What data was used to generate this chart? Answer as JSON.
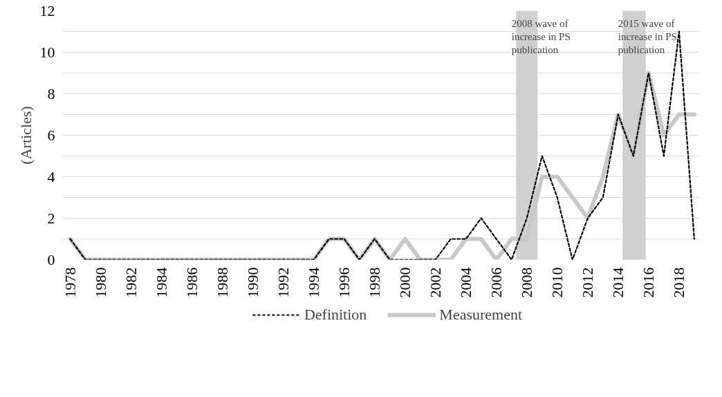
{
  "chart_data": {
    "type": "line",
    "ylabel": "(Articles)",
    "x": [
      1978,
      1979,
      1980,
      1981,
      1982,
      1983,
      1984,
      1985,
      1986,
      1987,
      1988,
      1989,
      1990,
      1991,
      1992,
      1993,
      1994,
      1995,
      1996,
      1997,
      1998,
      1999,
      2000,
      2001,
      2002,
      2003,
      2004,
      2005,
      2006,
      2007,
      2008,
      2009,
      2010,
      2011,
      2012,
      2013,
      2014,
      2015,
      2016,
      2017,
      2018,
      2019
    ],
    "series": [
      {
        "name": "Definition",
        "color": "#000000",
        "line_style": "dashed",
        "values": [
          1,
          0,
          0,
          0,
          0,
          0,
          0,
          0,
          0,
          0,
          0,
          0,
          0,
          0,
          0,
          0,
          0,
          1,
          1,
          0,
          1,
          0,
          0,
          0,
          0,
          1,
          1,
          2,
          1,
          0,
          2,
          5,
          3,
          0,
          2,
          3,
          7,
          5,
          9,
          5,
          11,
          1
        ]
      },
      {
        "name": "Measurement",
        "color": "#c8c8c8",
        "line_style": "solid",
        "values": [
          1,
          0,
          0,
          0,
          0,
          0,
          0,
          0,
          0,
          0,
          0,
          0,
          0,
          0,
          0,
          0,
          0,
          1,
          1,
          0,
          1,
          0,
          1,
          0,
          0,
          0,
          1,
          1,
          0,
          1,
          1,
          4,
          4,
          3,
          2,
          4,
          7,
          5,
          9,
          6,
          7,
          7
        ]
      }
    ],
    "xlim": [
      1977.5,
      2019.3
    ],
    "xticks": [
      1978,
      1980,
      1982,
      1984,
      1986,
      1988,
      1990,
      1992,
      1994,
      1996,
      1998,
      2000,
      2002,
      2004,
      2006,
      2008,
      2010,
      2012,
      2014,
      2016,
      2018
    ],
    "ylim": [
      0,
      12
    ],
    "yticks": [
      0,
      {
        "value": 1,
        "label": null
      },
      2,
      {
        "value": 3,
        "label": null
      },
      4,
      {
        "value": 5,
        "label": null
      },
      6,
      {
        "value": 7,
        "label": null
      },
      8,
      {
        "value": 9,
        "label": null
      },
      10,
      {
        "value": 11,
        "label": null
      },
      12
    ],
    "bands": [
      {
        "axis": "x",
        "from": 2007.3,
        "to": 2008.7,
        "label": "2008 wave of\nincrease in PS\npublication",
        "color": "#d0d0d0"
      },
      {
        "axis": "x",
        "from": 2014.3,
        "to": 2015.8,
        "label": "2015 wave of\nincrease in PS\npublication",
        "color": "#d0d0d0"
      }
    ],
    "grid": "y",
    "legend": "bottom"
  }
}
